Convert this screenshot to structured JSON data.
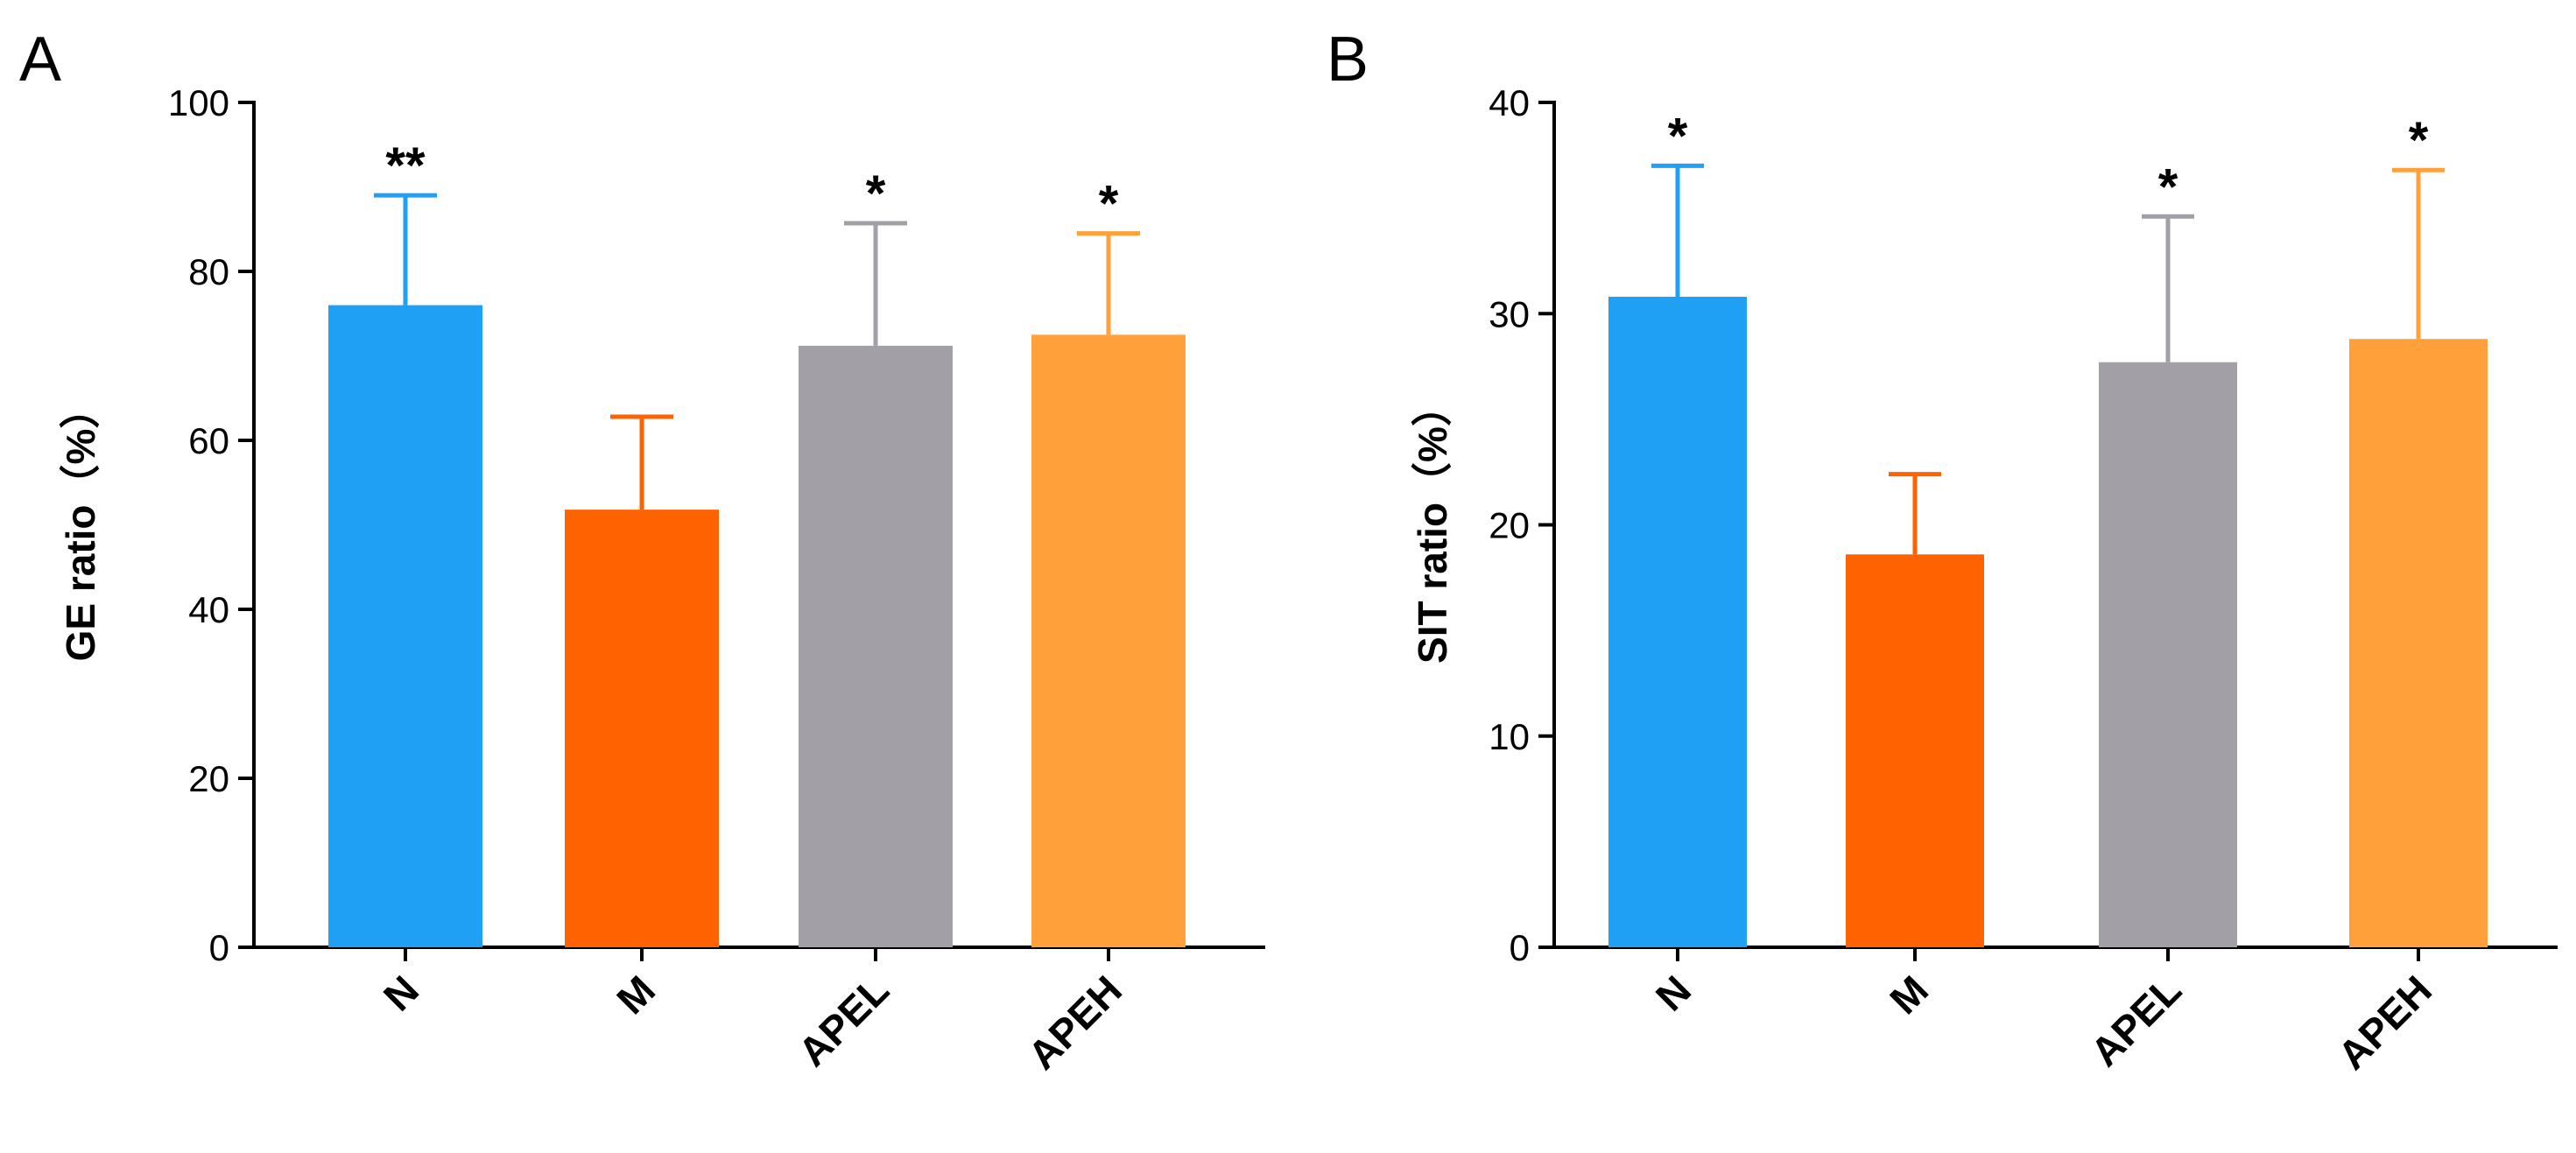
{
  "chart_data": [
    {
      "panel": "A",
      "type": "bar",
      "title": "",
      "xlabel": "",
      "ylabel": "GE ratio（%）",
      "ylim": [
        0,
        100
      ],
      "yticks": [
        0,
        20,
        40,
        60,
        80,
        100
      ],
      "grid": false,
      "categories": [
        "N",
        "M",
        "APEL",
        "APEH"
      ],
      "values": [
        76,
        51.8,
        71.2,
        72.5
      ],
      "errors": [
        13,
        11,
        14.5,
        12
      ],
      "significance": [
        "**",
        "",
        "*",
        "*"
      ],
      "colors": [
        "#1fa0f5",
        "#ff6200",
        "#a29fa6",
        "#ffa03a"
      ]
    },
    {
      "panel": "B",
      "type": "bar",
      "title": "",
      "xlabel": "",
      "ylabel": "SIT ratio（%）",
      "ylim": [
        0,
        40
      ],
      "yticks": [
        0,
        10,
        20,
        30,
        40
      ],
      "grid": false,
      "categories": [
        "N",
        "M",
        "APEL",
        "APEH"
      ],
      "values": [
        30.8,
        18.6,
        27.7,
        28.8
      ],
      "errors": [
        6.2,
        3.8,
        6.9,
        8
      ],
      "significance": [
        "*",
        "",
        "*",
        "*"
      ],
      "colors": [
        "#1fa0f5",
        "#ff6200",
        "#a29fa6",
        "#ffa03a"
      ]
    }
  ]
}
